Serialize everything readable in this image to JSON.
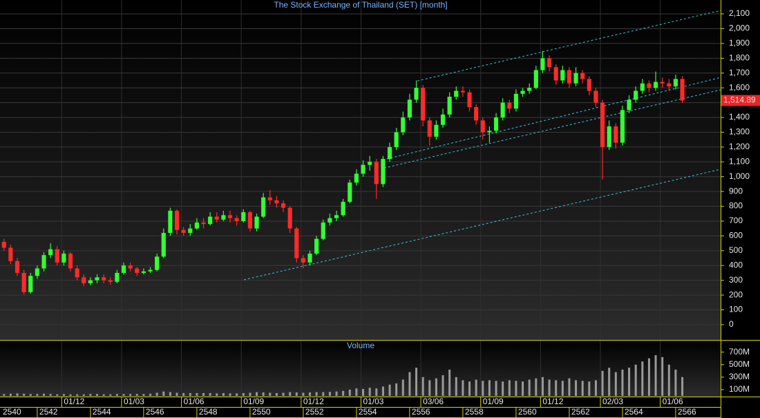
{
  "chart_data": {
    "type": "candlestick",
    "title": "The Stock Exchange of Thailand (SET) [month]",
    "x": [
      2540.75,
      2541,
      2541.25,
      2541.5,
      2541.75,
      2542,
      2542.25,
      2542.5,
      2542.75,
      2543,
      2543.25,
      2543.5,
      2543.75,
      2544,
      2544.25,
      2544.5,
      2544.75,
      2545,
      2545.25,
      2545.5,
      2545.75,
      2546,
      2546.25,
      2546.5,
      2546.75,
      2547,
      2547.25,
      2547.5,
      2547.75,
      2548,
      2548.25,
      2548.5,
      2548.75,
      2549,
      2549.25,
      2549.5,
      2549.75,
      2550,
      2550.25,
      2550.5,
      2550.75,
      2551,
      2551.25,
      2551.5,
      2551.75,
      2552,
      2552.25,
      2552.5,
      2552.75,
      2553,
      2553.25,
      2553.5,
      2553.75,
      2554,
      2554.25,
      2554.5,
      2554.75,
      2555,
      2555.25,
      2555.5,
      2555.75,
      2556,
      2556.25,
      2556.5,
      2556.75,
      2557,
      2557.25,
      2557.5,
      2557.75,
      2558,
      2558.25,
      2558.5,
      2558.75,
      2559,
      2559.25,
      2559.5,
      2559.75,
      2560,
      2560.25,
      2560.5,
      2560.75,
      2561,
      2561.25,
      2561.5,
      2561.75,
      2562,
      2562.25,
      2562.5,
      2562.75,
      2563,
      2563.25,
      2563.5,
      2563.75,
      2564,
      2564.25,
      2564.5,
      2564.75,
      2565,
      2565.25,
      2565.5,
      2565.75,
      2566,
      2566.25
    ],
    "open": [
      560,
      520,
      430,
      350,
      220,
      330,
      380,
      470,
      510,
      420,
      480,
      380,
      320,
      280,
      300,
      320,
      300,
      290,
      350,
      400,
      380,
      350,
      360,
      370,
      460,
      620,
      770,
      640,
      620,
      650,
      690,
      680,
      730,
      710,
      740,
      720,
      700,
      760,
      650,
      730,
      860,
      840,
      820,
      790,
      650,
      450,
      420,
      480,
      580,
      690,
      720,
      740,
      830,
      960,
      1020,
      1080,
      1100,
      950,
      1120,
      1200,
      1300,
      1400,
      1520,
      1600,
      1380,
      1270,
      1350,
      1420,
      1540,
      1580,
      1570,
      1470,
      1380,
      1300,
      1310,
      1400,
      1500,
      1460,
      1560,
      1580,
      1600,
      1720,
      1800,
      1740,
      1650,
      1720,
      1630,
      1700,
      1660,
      1580,
      1500,
      1200,
      1340,
      1230,
      1450,
      1520,
      1580,
      1630,
      1600,
      1640,
      1630,
      1610,
      1660
    ],
    "high": [
      580,
      540,
      450,
      370,
      350,
      400,
      490,
      550,
      530,
      500,
      490,
      400,
      340,
      320,
      340,
      340,
      320,
      370,
      420,
      420,
      390,
      380,
      390,
      480,
      650,
      790,
      780,
      660,
      680,
      720,
      720,
      760,
      760,
      770,
      770,
      740,
      780,
      770,
      750,
      890,
      910,
      870,
      840,
      800,
      660,
      470,
      500,
      600,
      710,
      750,
      770,
      850,
      980,
      1050,
      1110,
      1140,
      1120,
      1140,
      1230,
      1330,
      1440,
      1560,
      1650,
      1620,
      1400,
      1380,
      1460,
      1570,
      1610,
      1610,
      1590,
      1490,
      1400,
      1340,
      1430,
      1530,
      1520,
      1590,
      1600,
      1630,
      1750,
      1850,
      1820,
      1760,
      1750,
      1740,
      1740,
      1720,
      1680,
      1600,
      1520,
      1380,
      1360,
      1480,
      1550,
      1610,
      1660,
      1650,
      1710,
      1670,
      1660,
      1690,
      1680
    ],
    "low": [
      500,
      410,
      330,
      205,
      210,
      310,
      360,
      450,
      400,
      400,
      360,
      300,
      260,
      265,
      280,
      280,
      270,
      280,
      340,
      360,
      330,
      340,
      350,
      360,
      450,
      600,
      610,
      600,
      600,
      640,
      650,
      670,
      690,
      700,
      690,
      670,
      690,
      630,
      630,
      720,
      810,
      790,
      760,
      620,
      420,
      380,
      400,
      470,
      570,
      670,
      700,
      730,
      820,
      940,
      1000,
      1040,
      850,
      930,
      1100,
      1180,
      1280,
      1380,
      1500,
      1340,
      1210,
      1250,
      1330,
      1400,
      1520,
      1540,
      1440,
      1350,
      1250,
      1230,
      1290,
      1380,
      1430,
      1440,
      1540,
      1560,
      1590,
      1700,
      1710,
      1620,
      1630,
      1600,
      1610,
      1630,
      1550,
      1470,
      980,
      1180,
      1190,
      1210,
      1430,
      1500,
      1560,
      1570,
      1580,
      1600,
      1580,
      1590,
      1500
    ],
    "close": [
      520,
      430,
      350,
      220,
      330,
      380,
      470,
      510,
      420,
      480,
      380,
      320,
      280,
      300,
      320,
      300,
      290,
      350,
      400,
      380,
      350,
      360,
      370,
      460,
      620,
      770,
      640,
      620,
      650,
      690,
      680,
      730,
      710,
      740,
      720,
      700,
      760,
      650,
      730,
      860,
      840,
      820,
      790,
      650,
      450,
      420,
      480,
      580,
      690,
      720,
      740,
      830,
      960,
      1020,
      1080,
      1100,
      950,
      1120,
      1200,
      1300,
      1400,
      1520,
      1600,
      1380,
      1270,
      1350,
      1420,
      1540,
      1580,
      1570,
      1470,
      1380,
      1300,
      1310,
      1400,
      1500,
      1460,
      1560,
      1580,
      1600,
      1720,
      1800,
      1740,
      1650,
      1720,
      1630,
      1700,
      1660,
      1580,
      1500,
      1200,
      1340,
      1230,
      1450,
      1520,
      1580,
      1630,
      1600,
      1640,
      1630,
      1610,
      1660,
      1514.89
    ],
    "up_color": "#33ff33",
    "down_color": "#ff2a2a",
    "xlim": [
      2540.6,
      2567.69
    ],
    "ylim": [
      -103,
      2147
    ],
    "yticks": [
      0,
      100,
      200,
      300,
      400,
      500,
      600,
      700,
      800,
      900,
      {
        "value": 1000,
        "label": "1,000"
      },
      {
        "value": 1100,
        "label": "1,100"
      },
      {
        "value": 1200,
        "label": "1,200"
      },
      {
        "value": 1300,
        "label": "1,300"
      },
      {
        "value": 1400,
        "label": "1,400"
      },
      {
        "value": 1500,
        "label": "1,500"
      },
      {
        "value": 1600,
        "label": "1,600"
      },
      {
        "value": 1700,
        "label": "1,700"
      },
      {
        "value": 1800,
        "label": "1,800"
      },
      {
        "value": 1900,
        "label": "1,900"
      },
      {
        "value": 2000,
        "label": "2,000"
      },
      {
        "value": 2100,
        "label": "2,100"
      }
    ],
    "xticks": [
      2540,
      2542,
      2544,
      2546,
      2548,
      2550,
      2552,
      2554,
      2556,
      2558,
      2560,
      2562,
      2564,
      2566
    ],
    "date_ticks": [
      {
        "value": 2542.92,
        "label": "01/12"
      },
      {
        "value": 2545.17,
        "label": "01/03"
      },
      {
        "value": 2547.42,
        "label": "01/06"
      },
      {
        "value": 2549.67,
        "label": "01/09"
      },
      {
        "value": 2551.92,
        "label": "01/12"
      },
      {
        "value": 2554.17,
        "label": "01/03"
      },
      {
        "value": 2556.42,
        "label": "03/06"
      },
      {
        "value": 2558.67,
        "label": "01/09"
      },
      {
        "value": 2560.92,
        "label": "01/12"
      },
      {
        "value": 2563.17,
        "label": "02/03"
      },
      {
        "value": 2565.42,
        "label": "01/06"
      }
    ],
    "grid": true,
    "last_price": {
      "value": 1514.89,
      "label": "1,514.89",
      "color": "#ee2222"
    },
    "trendlines": {
      "color": "#3cc8dc",
      "lines": [
        {
          "x": [
            2556.29,
            2567.69
          ],
          "y": [
            1647,
            2123
          ]
        },
        {
          "x": [
            2555.14,
            2567.69
          ],
          "y": [
            1120,
            1670
          ]
        },
        {
          "x": [
            2555.04,
            2567.69
          ],
          "y": [
            1059,
            1587
          ]
        },
        {
          "x": [
            2549.77,
            2567.69
          ],
          "y": [
            303,
            1050
          ]
        }
      ]
    },
    "volume": {
      "title": "Volume",
      "color": "#9a9a9a",
      "ylim": [
        0,
        850
      ],
      "yticks": [
        {
          "value": 100,
          "label": "100M"
        },
        {
          "value": 300,
          "label": "300M"
        },
        {
          "value": 500,
          "label": "500M"
        },
        {
          "value": 700,
          "label": "700M"
        }
      ],
      "values": [
        30,
        35,
        40,
        35,
        30,
        30,
        35,
        30,
        25,
        30,
        25,
        25,
        25,
        30,
        30,
        25,
        25,
        30,
        30,
        30,
        30,
        30,
        35,
        50,
        70,
        60,
        50,
        45,
        45,
        45,
        45,
        45,
        40,
        45,
        40,
        40,
        45,
        50,
        60,
        55,
        50,
        45,
        50,
        60,
        55,
        50,
        55,
        60,
        60,
        65,
        70,
        80,
        100,
        120,
        110,
        130,
        120,
        150,
        180,
        200,
        260,
        380,
        450,
        300,
        250,
        280,
        330,
        420,
        300,
        250,
        230,
        260,
        240,
        250,
        240,
        230,
        250,
        240,
        230,
        260,
        280,
        300,
        260,
        250,
        240,
        280,
        250,
        240,
        230,
        250,
        400,
        450,
        380,
        420,
        450,
        500,
        550,
        600,
        650,
        620,
        500,
        420,
        300
      ]
    }
  }
}
